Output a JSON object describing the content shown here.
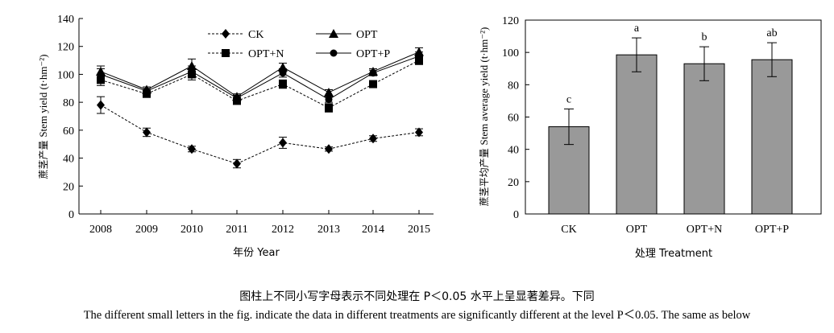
{
  "chart_data": [
    {
      "type": "line",
      "x": [
        "2008",
        "2009",
        "2010",
        "2011",
        "2012",
        "2013",
        "2014",
        "2015"
      ],
      "xlabel": "年份 Year",
      "ylabel_cn": "蔗茎产量",
      "ylabel_en": "Stem yield (t·hm⁻²)",
      "ylim": [
        0,
        140
      ],
      "yticks": [
        0,
        20,
        40,
        60,
        80,
        100,
        120,
        140
      ],
      "legend_position": "top-center",
      "series": [
        {
          "name": "CK",
          "marker": "diamond",
          "style": "dotted",
          "values": [
            78,
            58.5,
            46.5,
            36,
            51,
            46.5,
            54,
            58.5
          ],
          "errors": [
            6,
            3,
            2,
            3,
            4,
            1.5,
            2,
            2.5
          ]
        },
        {
          "name": "OPT",
          "marker": "triangle",
          "style": "solid",
          "values": [
            102,
            89,
            106,
            84,
            105,
            87,
            102,
            116
          ],
          "errors": [
            4,
            2,
            5,
            2,
            3,
            2,
            2,
            3
          ]
        },
        {
          "name": "OPT+N",
          "marker": "square",
          "style": "dotted",
          "values": [
            96,
            86,
            100,
            81,
            93,
            76,
            93,
            110
          ],
          "errors": [
            4,
            2,
            4,
            2,
            3,
            3,
            2,
            3
          ]
        },
        {
          "name": "OPT+P",
          "marker": "circle",
          "style": "solid",
          "values": [
            100,
            88,
            102,
            83,
            101,
            82,
            101,
            113
          ],
          "errors": [
            4,
            2,
            4,
            2,
            3,
            2,
            2,
            3
          ]
        }
      ]
    },
    {
      "type": "bar",
      "categories": [
        "CK",
        "OPT",
        "OPT+N",
        "OPT+P"
      ],
      "values": [
        54,
        98.5,
        93,
        95.5
      ],
      "errors": [
        11,
        10.5,
        10.5,
        10.5
      ],
      "letters": [
        "c",
        "a",
        "b",
        "ab"
      ],
      "xlabel": "处理 Treatment",
      "ylabel_cn": "蔗茎平均产量",
      "ylabel_en": "Stem average yield (t·hm⁻²)",
      "ylim": [
        0,
        120
      ],
      "yticks": [
        0,
        20,
        40,
        60,
        80,
        100,
        120
      ],
      "bar_color": "#999999"
    }
  ],
  "caption": {
    "cn": "图柱上不同小写字母表示不同处理在 P＜0.05 水平上呈显著差异。下同",
    "en": "The different small letters in the fig. indicate the data in different treatments are significantly different at the level P＜0.05. The same as below"
  }
}
